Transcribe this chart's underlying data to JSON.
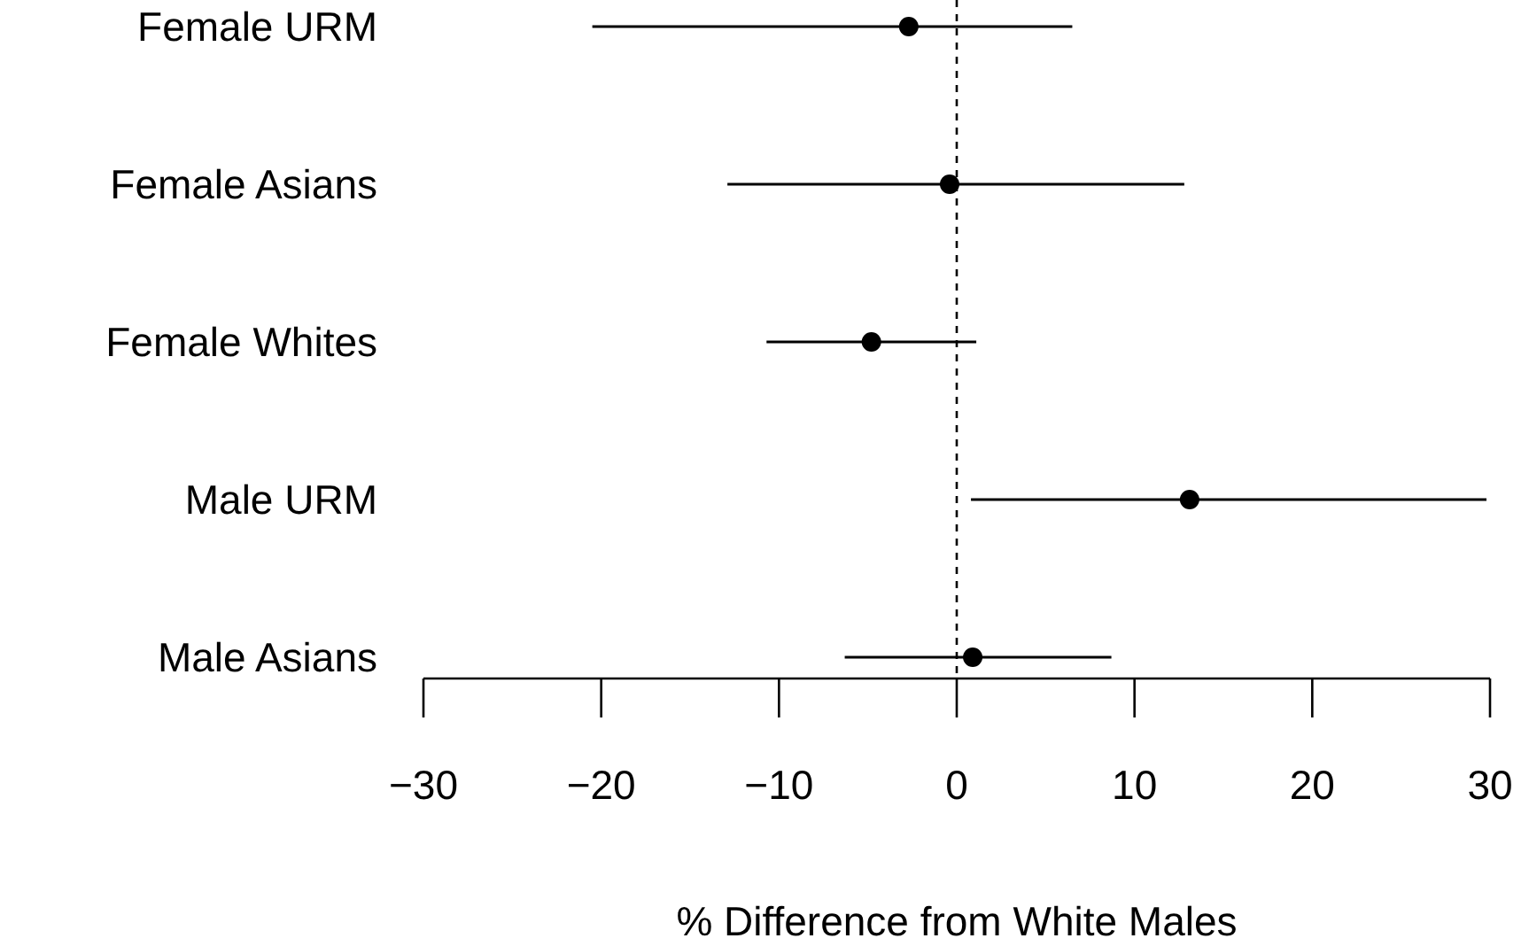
{
  "chart_data": {
    "type": "scatter",
    "orientation": "horizontal",
    "xlabel": "% Difference from White Males",
    "categories": [
      "Female URM",
      "Female Asians",
      "Female Whites",
      "Male URM",
      "Male Asians"
    ],
    "values": [
      -2.7,
      -0.4,
      -4.8,
      13.1,
      0.9
    ],
    "errors": [
      [
        -20.5,
        6.5
      ],
      [
        -12.9,
        12.8
      ],
      [
        -10.7,
        1.1
      ],
      [
        0.8,
        29.8
      ],
      [
        -6.3,
        8.7
      ]
    ],
    "color": "#000000",
    "marker": "circle",
    "xlim": [
      -30,
      30
    ],
    "xticks": [
      {
        "value": -30,
        "label": "−30"
      },
      {
        "value": -20,
        "label": "−20"
      },
      {
        "value": -10,
        "label": "−10"
      },
      0,
      10,
      20,
      30
    ],
    "ref_lines": [
      {
        "axis": "x",
        "value": 0,
        "line_style": "dashed",
        "color": "#000000"
      }
    ],
    "line_style": "solid"
  }
}
